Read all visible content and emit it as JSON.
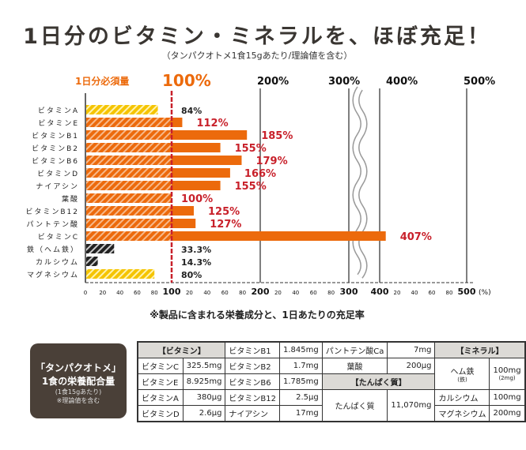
{
  "title": "1日分のビタミン・ミネラルを、ほぼ充足！",
  "subtitle": "（タンパクオトメ1食15gあたり/理論値を含む）",
  "chart_data": {
    "type": "bar",
    "orientation": "horizontal",
    "header_label": "1日分必須量",
    "reference_label": "100%",
    "reference_value": 100,
    "top_labels": [
      "200%",
      "300%",
      "400%",
      "500%"
    ],
    "axis_ticks": [
      "0",
      "20",
      "40",
      "60",
      "80",
      "100",
      "20",
      "40",
      "60",
      "80",
      "200",
      "20",
      "40",
      "60",
      "80",
      "300",
      "400",
      "20",
      "40",
      "60",
      "80",
      "500"
    ],
    "axis_unit": "(%)",
    "xlim": [
      0,
      500
    ],
    "axis_break": [
      300,
      400
    ],
    "categories": [
      "ビタミンA",
      "ビタミンE",
      "ビタミンB1",
      "ビタミンB2",
      "ビタミンB6",
      "ビタミンD",
      "ナイアシン",
      "葉酸",
      "ビタミンB12",
      "パントテン酸",
      "ビタミンC",
      "鉄（ヘム鉄）",
      "カルシウム",
      "マグネシウム"
    ],
    "values": [
      84,
      112,
      185,
      155,
      179,
      166,
      155,
      100,
      125,
      127,
      407,
      33.3,
      14.3,
      80
    ],
    "value_labels": [
      "84%",
      "112%",
      "185%",
      "155%",
      "179%",
      "166%",
      "155%",
      "100%",
      "125%",
      "127%",
      "407%",
      "33.3%",
      "14.3%",
      "80%"
    ],
    "bar_styles": [
      "yellow",
      "orange",
      "orange",
      "orange",
      "orange",
      "orange",
      "orange",
      "orange",
      "orange",
      "orange",
      "orange",
      "black",
      "black",
      "yellow"
    ],
    "colors": {
      "orange": "#ec6a0c",
      "yellow": "#f5c400",
      "black": "#222222",
      "red_line": "#c8202a",
      "label_red": "#c8202a",
      "label_black": "#222222",
      "grid": "#555555"
    }
  },
  "footnote": "※製品に含まれる栄養成分と、1日あたりの充足率",
  "box": {
    "line1": "「タンパクオトメ」",
    "line2": "1食の栄養配合量",
    "line3": "(1食15gあたり)",
    "line4": "※理論値を含む"
  },
  "table": {
    "vit_header": "【ビタミン】",
    "vc": [
      "ビタミンC",
      "325.5mg"
    ],
    "ve": [
      "ビタミンE",
      "8.925mg"
    ],
    "va": [
      "ビタミンA",
      "380μg"
    ],
    "vd": [
      "ビタミンD",
      "2.6μg"
    ],
    "b1": [
      "ビタミンB1",
      "1.845mg"
    ],
    "b2": [
      "ビタミンB2",
      "1.7mg"
    ],
    "b6": [
      "ビタミンB6",
      "1.785mg"
    ],
    "b12": [
      "ビタミンB12",
      "2.5μg"
    ],
    "nia": [
      "ナイアシン",
      "17mg"
    ],
    "pan": [
      "パントテン酸Ca",
      "7mg"
    ],
    "fol": [
      "葉酸",
      "200μg"
    ],
    "pro_header": "【たんぱく質】",
    "pro": [
      "たんぱく質",
      "11,070mg"
    ],
    "min_header": "【ミネラル】",
    "fe": [
      "ヘム鉄",
      "(鉄)",
      "100mg",
      "(2mg)"
    ],
    "ca": [
      "カルシウム",
      "100mg"
    ],
    "mg": [
      "マグネシウム",
      "200mg"
    ]
  }
}
